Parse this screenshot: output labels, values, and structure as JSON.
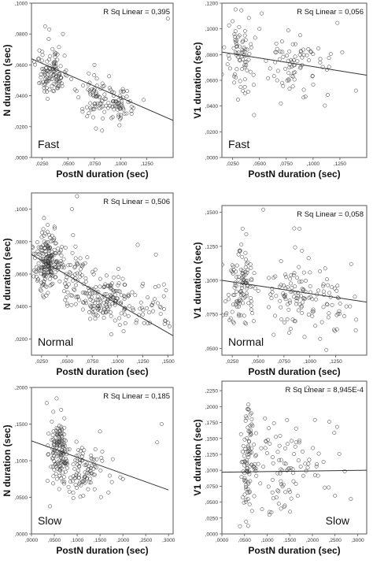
{
  "chart_data": [
    {
      "type": "scatter",
      "panel": "fast-n",
      "annotation": "R Sq Linear = 0,395",
      "condition": "Fast",
      "xlabel": "PostN duration (sec)",
      "ylabel": "N duration (sec)",
      "xlim": [
        0.015,
        0.15
      ],
      "ylim": [
        0.0,
        0.1
      ],
      "xticks": [
        0.025,
        0.05,
        0.075,
        0.1,
        0.125
      ],
      "xtick_labels": [
        ",0250",
        ",0500",
        ",0750",
        ",1000",
        ",1250"
      ],
      "yticks": [
        0.0,
        0.02,
        0.04,
        0.06,
        0.08,
        0.1
      ],
      "ytick_labels": [
        ",0000",
        ",0200",
        ",0400",
        ",0600",
        ",0800",
        ",1000"
      ],
      "fit_line": [
        [
          0.015,
          0.064
        ],
        [
          0.15,
          0.024
        ]
      ],
      "clusters": [
        {
          "cx": 0.035,
          "cy": 0.055,
          "sx": 0.007,
          "sy": 0.008,
          "n": 110
        },
        {
          "cx": 0.08,
          "cy": 0.038,
          "sx": 0.011,
          "sy": 0.007,
          "n": 90
        },
        {
          "cx": 0.1,
          "cy": 0.032,
          "sx": 0.008,
          "sy": 0.006,
          "n": 35
        }
      ],
      "outliers": [
        [
          0.028,
          0.085
        ],
        [
          0.032,
          0.083
        ],
        [
          0.145,
          0.09
        ],
        [
          0.045,
          0.08
        ],
        [
          0.075,
          0.06
        ]
      ]
    },
    {
      "type": "scatter",
      "panel": "fast-v1",
      "annotation": "R Sq Linear = 0,056",
      "condition": "Fast",
      "xlabel": "PostN duration (sec)",
      "ylabel": "V1 duration (sec)",
      "xlim": [
        0.015,
        0.15
      ],
      "ylim": [
        0.0,
        0.12
      ],
      "xticks": [
        0.025,
        0.05,
        0.075,
        0.1,
        0.125
      ],
      "xtick_labels": [
        ",0250",
        ",0500",
        ",0750",
        ",1000",
        ",1250"
      ],
      "yticks": [
        0.0,
        0.02,
        0.04,
        0.06,
        0.08,
        0.1,
        0.12
      ],
      "ytick_labels": [
        ",0000",
        ",0200",
        ",0400",
        ",0600",
        ",0800",
        ",1000",
        ",1200"
      ],
      "fit_line": [
        [
          0.015,
          0.082
        ],
        [
          0.15,
          0.064
        ]
      ],
      "clusters": [
        {
          "cx": 0.033,
          "cy": 0.08,
          "sx": 0.006,
          "sy": 0.016,
          "n": 75
        },
        {
          "cx": 0.078,
          "cy": 0.074,
          "sx": 0.01,
          "sy": 0.013,
          "n": 60
        },
        {
          "cx": 0.105,
          "cy": 0.072,
          "sx": 0.012,
          "sy": 0.012,
          "n": 20
        }
      ],
      "outliers": [
        [
          0.045,
          0.033
        ],
        [
          0.03,
          0.045
        ],
        [
          0.052,
          0.112
        ],
        [
          0.07,
          0.042
        ],
        [
          0.14,
          0.052
        ],
        [
          0.05,
          0.1
        ]
      ]
    },
    {
      "type": "scatter",
      "panel": "normal-n",
      "annotation": "R Sq Linear = 0,506",
      "condition": "Normal",
      "xlabel": "PostN duration (sec)",
      "ylabel": "N duration (sec)",
      "xlim": [
        0.015,
        0.155
      ],
      "ylim": [
        0.01,
        0.11
      ],
      "xticks": [
        0.025,
        0.05,
        0.075,
        0.1,
        0.125,
        0.15
      ],
      "xtick_labels": [
        ",0250",
        ",0500",
        ",0750",
        ",1000",
        ",1250",
        ",1500"
      ],
      "yticks": [
        0.02,
        0.04,
        0.06,
        0.08,
        0.1
      ],
      "ytick_labels": [
        ",0200",
        ",0400",
        ",0600",
        ",0800",
        ",1000"
      ],
      "fit_line": [
        [
          0.015,
          0.072
        ],
        [
          0.155,
          0.022
        ]
      ],
      "clusters": [
        {
          "cx": 0.03,
          "cy": 0.068,
          "sx": 0.006,
          "sy": 0.009,
          "n": 190
        },
        {
          "cx": 0.055,
          "cy": 0.06,
          "sx": 0.009,
          "sy": 0.01,
          "n": 60
        },
        {
          "cx": 0.088,
          "cy": 0.045,
          "sx": 0.015,
          "sy": 0.007,
          "n": 150
        },
        {
          "cx": 0.13,
          "cy": 0.04,
          "sx": 0.012,
          "sy": 0.008,
          "n": 45
        }
      ],
      "outliers": [
        [
          0.06,
          0.108
        ],
        [
          0.055,
          0.1
        ],
        [
          0.12,
          0.078
        ],
        [
          0.148,
          0.05
        ],
        [
          0.15,
          0.03
        ],
        [
          0.138,
          0.072
        ]
      ]
    },
    {
      "type": "scatter",
      "panel": "normal-v1",
      "annotation": "R Sq Linear = 0,058",
      "condition": "Normal",
      "xlabel": "PostN duration (sec)",
      "ylabel": "V1 duration (sec)",
      "xlim": [
        0.015,
        0.155
      ],
      "ylim": [
        0.045,
        0.155
      ],
      "xticks": [
        0.025,
        0.05,
        0.075,
        0.1,
        0.125
      ],
      "xtick_labels": [
        ",0250",
        ",0500",
        ",0750",
        ",1000",
        ",1250"
      ],
      "yticks": [
        0.05,
        0.075,
        0.1,
        0.125,
        0.15
      ],
      "ytick_labels": [
        ",0500",
        ",0750",
        ",1000",
        ",1250",
        ",1500"
      ],
      "fit_line": [
        [
          0.015,
          0.1
        ],
        [
          0.155,
          0.084
        ]
      ],
      "clusters": [
        {
          "cx": 0.032,
          "cy": 0.095,
          "sx": 0.007,
          "sy": 0.014,
          "n": 110
        },
        {
          "cx": 0.085,
          "cy": 0.092,
          "sx": 0.014,
          "sy": 0.014,
          "n": 100
        },
        {
          "cx": 0.125,
          "cy": 0.085,
          "sx": 0.011,
          "sy": 0.012,
          "n": 35
        }
      ],
      "outliers": [
        [
          0.055,
          0.152
        ],
        [
          0.035,
          0.138
        ],
        [
          0.09,
          0.138
        ],
        [
          0.065,
          0.06
        ],
        [
          0.11,
          0.057
        ],
        [
          0.14,
          0.112
        ]
      ]
    },
    {
      "type": "scatter",
      "panel": "slow-n",
      "annotation": "R Sq Linear = 0,185",
      "condition": "Slow",
      "xlabel": "PostN duration (sec)",
      "ylabel": "N duration (sec)",
      "xlim": [
        0.0,
        0.31
      ],
      "ylim": [
        0.0,
        0.2
      ],
      "xticks": [
        0.0,
        0.05,
        0.1,
        0.15,
        0.2,
        0.25,
        0.3
      ],
      "xtick_labels": [
        ",0000",
        ",0500",
        ",1000",
        ",1500",
        ",2000",
        ",2500",
        ",3000"
      ],
      "yticks": [
        0.0,
        0.05,
        0.1,
        0.15,
        0.2
      ],
      "ytick_labels": [
        ",0000",
        ",0500",
        ",1000",
        ",1500",
        ",2000"
      ],
      "fit_line": [
        [
          0.0,
          0.127
        ],
        [
          0.3,
          0.06
        ]
      ],
      "clusters": [
        {
          "cx": 0.06,
          "cy": 0.112,
          "sx": 0.011,
          "sy": 0.022,
          "n": 140
        },
        {
          "cx": 0.115,
          "cy": 0.085,
          "sx": 0.025,
          "sy": 0.018,
          "n": 100
        }
      ],
      "outliers": [
        [
          0.055,
          0.185
        ],
        [
          0.15,
          0.14
        ],
        [
          0.178,
          0.102
        ],
        [
          0.285,
          0.15
        ],
        [
          0.275,
          0.125
        ],
        [
          0.2,
          0.075
        ]
      ]
    },
    {
      "type": "scatter",
      "panel": "slow-v1",
      "annotation": "R Sq Linear = 8,945E-4",
      "condition": "Slow",
      "xlabel": "PostN duration (sec)",
      "ylabel": "V1 duration (sec)",
      "xlim": [
        0.0,
        0.32
      ],
      "ylim": [
        0.0,
        0.24
      ],
      "xticks": [
        0.0,
        0.05,
        0.1,
        0.15,
        0.2,
        0.25,
        0.3
      ],
      "xtick_labels": [
        ",0000",
        ",0500",
        ",1000",
        ",1500",
        ",2000",
        ",2500",
        ",3000"
      ],
      "yticks": [
        0.0,
        0.025,
        0.05,
        0.075,
        0.1,
        0.125,
        0.15,
        0.175,
        0.2,
        0.225
      ],
      "ytick_labels": [
        ",0000",
        ",0250",
        ",0500",
        ",0750",
        ",1000",
        ",1250",
        ",1500",
        ",1750",
        ",2000",
        ",2250"
      ],
      "fit_line": [
        [
          0.0,
          0.097
        ],
        [
          0.32,
          0.1
        ]
      ],
      "clusters": [
        {
          "cx": 0.058,
          "cy": 0.12,
          "sx": 0.008,
          "sy": 0.045,
          "n": 95
        },
        {
          "cx": 0.135,
          "cy": 0.1,
          "sx": 0.03,
          "sy": 0.04,
          "n": 80
        },
        {
          "cx": 0.22,
          "cy": 0.12,
          "sx": 0.025,
          "sy": 0.035,
          "n": 18
        }
      ],
      "outliers": [
        [
          0.19,
          0.23
        ],
        [
          0.25,
          0.06
        ],
        [
          0.285,
          0.055
        ],
        [
          0.04,
          0.012
        ],
        [
          0.105,
          0.03
        ]
      ]
    }
  ]
}
